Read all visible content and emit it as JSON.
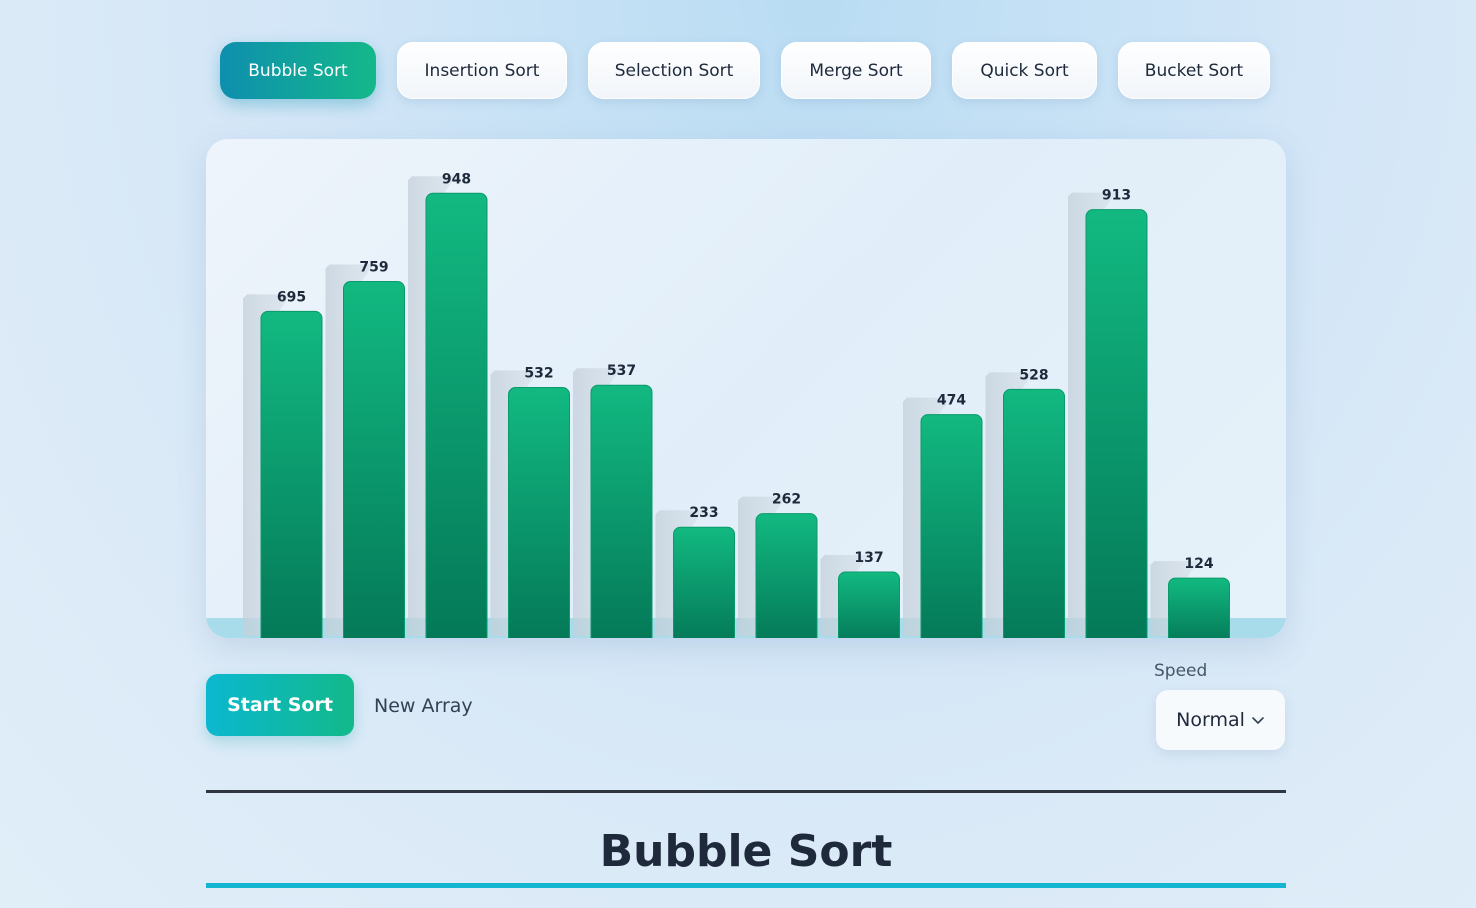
{
  "tabs": [
    {
      "label": "Bubble Sort",
      "active": true
    },
    {
      "label": "Insertion Sort",
      "active": false
    },
    {
      "label": "Selection Sort",
      "active": false
    },
    {
      "label": "Merge Sort",
      "active": false
    },
    {
      "label": "Quick Sort",
      "active": false
    },
    {
      "label": "Bucket Sort",
      "active": false
    }
  ],
  "chart_data": {
    "type": "bar",
    "values": [
      695,
      759,
      948,
      532,
      537,
      233,
      262,
      137,
      474,
      528,
      913,
      124
    ],
    "ylim": [
      0,
      1000
    ],
    "bar_color": "#0ea874"
  },
  "controls": {
    "start_label": "Start Sort",
    "new_array_label": "New Array",
    "speed_label": "Speed",
    "speed_value": "Normal"
  },
  "algorithm_title": "Bubble Sort",
  "colors": {
    "accent": "#13b5d0",
    "bar_top": "#12b981",
    "bar_bottom": "#047857"
  }
}
